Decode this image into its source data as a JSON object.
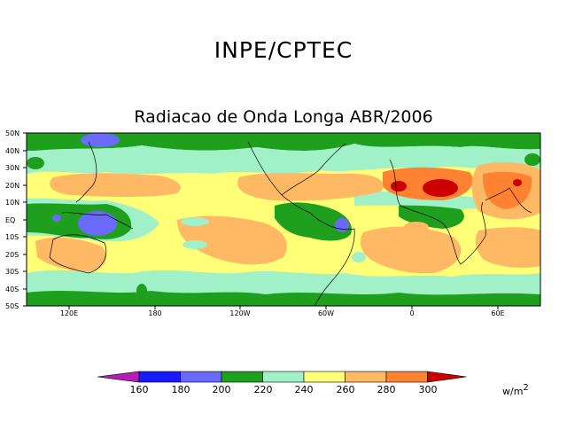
{
  "title": "INPE/CPTEC",
  "subtitle": "Radiacao de Onda Longa ABR/2006",
  "lat_labels": [
    "50N",
    "40N",
    "30N",
    "20N",
    "10N",
    "EQ",
    "10S",
    "20S",
    "30S",
    "40S",
    "50S"
  ],
  "lon_labels": [
    "120E",
    "180",
    "120W",
    "60W",
    "0",
    "60E"
  ],
  "colorbar": {
    "ticks": [
      "160",
      "180",
      "200",
      "220",
      "240",
      "260",
      "280",
      "300"
    ],
    "colors": [
      "#b61cb6",
      "#1a1aff",
      "#6a6aff",
      "#1ea01e",
      "#a0f0c8",
      "#ffff78",
      "#ffb964",
      "#ff8232",
      "#cc0000"
    ],
    "unit_base": "w/m",
    "unit_exp": "2"
  }
}
